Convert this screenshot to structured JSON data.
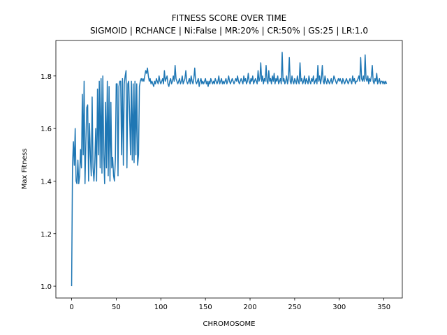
{
  "chart_data": {
    "type": "line",
    "title": "FITNESS SCORE OVER TIME",
    "subtitle": "SIGMOID | RCHANCE | Ni:False | MR:20% | CR:50% | GS:25 | LR:1.0",
    "x_label": "CHROMOSOME",
    "y_label": "Max Fitness",
    "xlim": [
      -17.65,
      370.65
    ],
    "ylim": [
      0.955,
      1.935
    ],
    "xticks": [
      0,
      50,
      100,
      150,
      200,
      250,
      300,
      350
    ],
    "yticks": [
      {
        "value": 1,
        "label": "1.0"
      },
      1.2,
      1.4,
      1.6,
      1.8
    ],
    "x": [
      0,
      1,
      2,
      3,
      4,
      5,
      6,
      7,
      8,
      9,
      10,
      11,
      12,
      13,
      14,
      15,
      16,
      17,
      18,
      19,
      20,
      21,
      22,
      23,
      24,
      25,
      26,
      27,
      28,
      29,
      30,
      31,
      32,
      33,
      34,
      35,
      36,
      37,
      38,
      39,
      40,
      41,
      42,
      43,
      44,
      45,
      46,
      47,
      48,
      49,
      50,
      51,
      52,
      53,
      54,
      55,
      56,
      57,
      58,
      59,
      60,
      61,
      62,
      63,
      64,
      65,
      66,
      67,
      68,
      69,
      70,
      71,
      72,
      73,
      74,
      75,
      76,
      77,
      78,
      79,
      80,
      81,
      82,
      83,
      84,
      85,
      86,
      87,
      88,
      89,
      90,
      91,
      92,
      93,
      94,
      95,
      96,
      97,
      98,
      99,
      100,
      101,
      102,
      103,
      104,
      105,
      106,
      107,
      108,
      109,
      110,
      111,
      112,
      113,
      114,
      115,
      116,
      117,
      118,
      119,
      120,
      121,
      122,
      123,
      124,
      125,
      126,
      127,
      128,
      129,
      130,
      131,
      132,
      133,
      134,
      135,
      136,
      137,
      138,
      139,
      140,
      141,
      142,
      143,
      144,
      145,
      146,
      147,
      148,
      149,
      150,
      151,
      152,
      153,
      154,
      155,
      156,
      157,
      158,
      159,
      160,
      161,
      162,
      163,
      164,
      165,
      166,
      167,
      168,
      169,
      170,
      171,
      172,
      173,
      174,
      175,
      176,
      177,
      178,
      179,
      180,
      181,
      182,
      183,
      184,
      185,
      186,
      187,
      188,
      189,
      190,
      191,
      192,
      193,
      194,
      195,
      196,
      197,
      198,
      199,
      200,
      201,
      202,
      203,
      204,
      205,
      206,
      207,
      208,
      209,
      210,
      211,
      212,
      213,
      214,
      215,
      216,
      217,
      218,
      219,
      220,
      221,
      222,
      223,
      224,
      225,
      226,
      227,
      228,
      229,
      230,
      231,
      232,
      233,
      234,
      235,
      236,
      237,
      238,
      239,
      240,
      241,
      242,
      243,
      244,
      245,
      246,
      247,
      248,
      249,
      250,
      251,
      252,
      253,
      254,
      255,
      256,
      257,
      258,
      259,
      260,
      261,
      262,
      263,
      264,
      265,
      266,
      267,
      268,
      269,
      270,
      271,
      272,
      273,
      274,
      275,
      276,
      277,
      278,
      279,
      280,
      281,
      282,
      283,
      284,
      285,
      286,
      287,
      288,
      289,
      290,
      291,
      292,
      293,
      294,
      295,
      296,
      297,
      298,
      299,
      300,
      301,
      302,
      303,
      304,
      305,
      306,
      307,
      308,
      309,
      310,
      311,
      312,
      313,
      314,
      315,
      316,
      317,
      318,
      319,
      320,
      321,
      322,
      323,
      324,
      325,
      326,
      327,
      328,
      329,
      330,
      331,
      332,
      333,
      334,
      335,
      336,
      337,
      338,
      339,
      340,
      341,
      342,
      343,
      344,
      345,
      346,
      347,
      348,
      349,
      350,
      351,
      352,
      353
    ],
    "series": [
      {
        "color": "#1f77b4",
        "values": [
          1.0,
          1.46,
          1.55,
          1.46,
          1.6,
          1.4,
          1.39,
          1.48,
          1.39,
          1.42,
          1.52,
          1.45,
          1.73,
          1.5,
          1.78,
          1.39,
          1.55,
          1.68,
          1.69,
          1.4,
          1.62,
          1.5,
          1.42,
          1.72,
          1.45,
          1.4,
          1.47,
          1.6,
          1.4,
          1.75,
          1.5,
          1.78,
          1.45,
          1.79,
          1.43,
          1.8,
          1.5,
          1.39,
          1.7,
          1.45,
          1.78,
          1.42,
          1.76,
          1.4,
          1.7,
          1.45,
          1.49,
          1.42,
          1.4,
          1.48,
          1.77,
          1.77,
          1.42,
          1.76,
          1.78,
          1.78,
          1.5,
          1.79,
          1.46,
          1.77,
          1.8,
          1.82,
          1.45,
          1.77,
          1.78,
          1.65,
          1.5,
          1.78,
          1.48,
          1.77,
          1.47,
          1.78,
          1.5,
          1.77,
          1.46,
          1.5,
          1.76,
          1.78,
          1.79,
          1.78,
          1.79,
          1.78,
          1.8,
          1.82,
          1.81,
          1.83,
          1.8,
          1.78,
          1.79,
          1.77,
          1.78,
          1.77,
          1.76,
          1.78,
          1.77,
          1.79,
          1.78,
          1.77,
          1.8,
          1.78,
          1.77,
          1.78,
          1.79,
          1.77,
          1.82,
          1.78,
          1.79,
          1.8,
          1.77,
          1.76,
          1.78,
          1.79,
          1.77,
          1.78,
          1.8,
          1.78,
          1.84,
          1.79,
          1.78,
          1.77,
          1.78,
          1.79,
          1.77,
          1.78,
          1.8,
          1.77,
          1.78,
          1.79,
          1.82,
          1.78,
          1.77,
          1.78,
          1.79,
          1.77,
          1.8,
          1.78,
          1.77,
          1.79,
          1.83,
          1.78,
          1.77,
          1.78,
          1.79,
          1.76,
          1.78,
          1.79,
          1.77,
          1.78,
          1.77,
          1.78,
          1.79,
          1.77,
          1.78,
          1.76,
          1.78,
          1.77,
          1.79,
          1.78,
          1.77,
          1.78,
          1.77,
          1.79,
          1.78,
          1.77,
          1.78,
          1.8,
          1.77,
          1.78,
          1.79,
          1.77,
          1.78,
          1.77,
          1.78,
          1.79,
          1.77,
          1.78,
          1.8,
          1.78,
          1.77,
          1.78,
          1.79,
          1.78,
          1.77,
          1.78,
          1.79,
          1.78,
          1.8,
          1.78,
          1.77,
          1.78,
          1.79,
          1.78,
          1.77,
          1.8,
          1.78,
          1.79,
          1.77,
          1.78,
          1.81,
          1.78,
          1.77,
          1.79,
          1.78,
          1.8,
          1.77,
          1.78,
          1.79,
          1.78,
          1.77,
          1.82,
          1.78,
          1.79,
          1.85,
          1.78,
          1.8,
          1.77,
          1.79,
          1.78,
          1.84,
          1.78,
          1.77,
          1.82,
          1.78,
          1.79,
          1.77,
          1.8,
          1.78,
          1.81,
          1.77,
          1.79,
          1.78,
          1.8,
          1.77,
          1.78,
          1.79,
          1.77,
          1.89,
          1.78,
          1.79,
          1.77,
          1.78,
          1.8,
          1.77,
          1.79,
          1.87,
          1.78,
          1.77,
          1.8,
          1.78,
          1.77,
          1.79,
          1.78,
          1.77,
          1.8,
          1.78,
          1.77,
          1.85,
          1.78,
          1.79,
          1.77,
          1.78,
          1.8,
          1.77,
          1.79,
          1.78,
          1.77,
          1.8,
          1.78,
          1.77,
          1.79,
          1.78,
          1.8,
          1.77,
          1.78,
          1.79,
          1.77,
          1.84,
          1.78,
          1.8,
          1.77,
          1.79,
          1.84,
          1.78,
          1.77,
          1.8,
          1.78,
          1.77,
          1.79,
          1.78,
          1.77,
          1.78,
          1.79,
          1.77,
          1.78,
          1.8,
          1.79,
          1.78,
          1.77,
          1.78,
          1.79,
          1.78,
          1.79,
          1.78,
          1.77,
          1.79,
          1.78,
          1.77,
          1.78,
          1.79,
          1.78,
          1.77,
          1.78,
          1.79,
          1.78,
          1.77,
          1.8,
          1.78,
          1.79,
          1.77,
          1.78,
          1.78,
          1.79,
          1.8,
          1.78,
          1.87,
          1.79,
          1.78,
          1.8,
          1.78,
          1.88,
          1.79,
          1.78,
          1.8,
          1.77,
          1.79,
          1.78,
          1.8,
          1.84,
          1.78,
          1.77,
          1.79,
          1.78,
          1.81,
          1.77,
          1.78,
          1.79,
          1.77,
          1.78,
          1.78,
          1.77,
          1.78,
          1.77,
          1.78,
          1.77
        ]
      }
    ]
  }
}
